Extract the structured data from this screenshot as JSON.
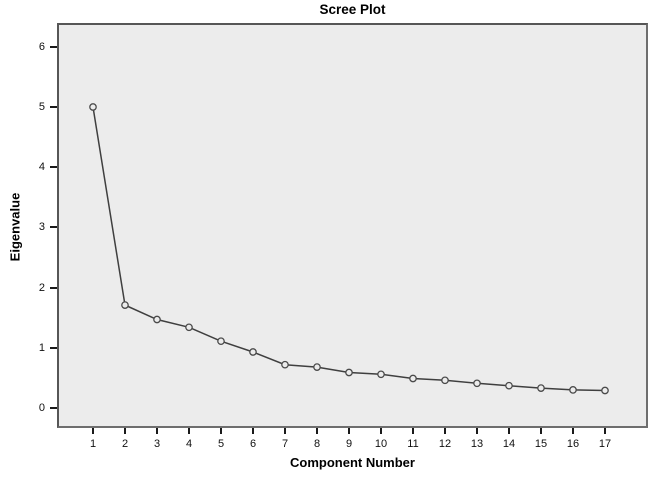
{
  "chart_data": {
    "type": "line",
    "title": "Scree Plot",
    "xlabel": "Component Number",
    "ylabel": "Eigenvalue",
    "series": [
      {
        "name": "Eigenvalue",
        "marker": "circle",
        "values": [
          5.0,
          1.71,
          1.47,
          1.34,
          1.11,
          0.93,
          0.72,
          0.68,
          0.59,
          0.56,
          0.49,
          0.46,
          0.41,
          0.37,
          0.33,
          0.3,
          0.29
        ]
      }
    ],
    "categories": [
      1,
      2,
      3,
      4,
      5,
      6,
      7,
      8,
      9,
      10,
      11,
      12,
      13,
      14,
      15,
      16,
      17
    ],
    "xticks": [
      "1",
      "2",
      "3",
      "4",
      "5",
      "6",
      "7",
      "8",
      "9",
      "10",
      "11",
      "12",
      "13",
      "14",
      "15",
      "16",
      "17"
    ],
    "yticks": [
      "0",
      "1",
      "2",
      "3",
      "4",
      "5",
      "6"
    ],
    "ytick_values": [
      0,
      1,
      2,
      3,
      4,
      5,
      6
    ],
    "xlim": [
      0,
      18.3
    ],
    "ylim": [
      -0.35,
      6.35
    ],
    "grid": false,
    "legend": "none",
    "colors": {
      "line": "#3f3f3f",
      "marker_stroke": "#4a4a4a",
      "marker_fill": "#ececec",
      "plot_background": "#ececec",
      "plot_border": "#6e6e6e",
      "tick": "#1a1a1a",
      "text": "#000000",
      "figure_background": "#ffffff"
    }
  }
}
